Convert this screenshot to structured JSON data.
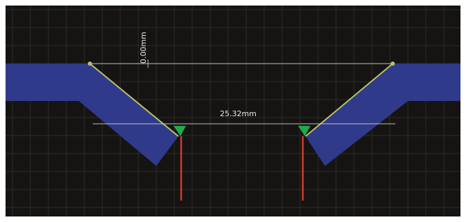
{
  "cad_view": {
    "background_color": "#161412",
    "frame_color": "#ffffff",
    "grid_color": "#2c2b25",
    "profile_fill_color": "#303a8a",
    "profile_edge_color": "#b7c467",
    "dimension_line_color": "#d9d9d9",
    "marker_color": "#23a84a",
    "probe_color": "#d23a2f",
    "dimensions": {
      "vertical_offset": "0.00mm",
      "horizontal_gap": "25.32mm"
    },
    "icons": {
      "left_marker": "green-triangle-marker-icon",
      "right_marker": "green-triangle-marker-icon",
      "left_probe": "red-probe-line-icon",
      "right_probe": "red-probe-line-icon"
    }
  }
}
